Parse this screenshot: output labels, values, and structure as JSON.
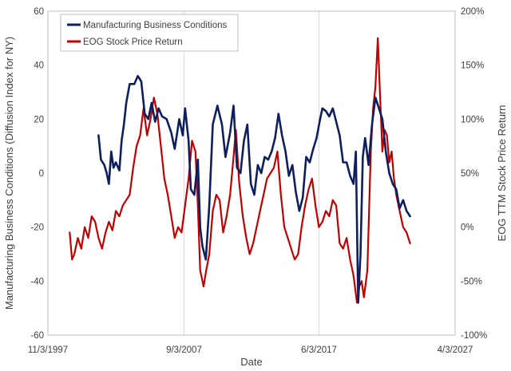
{
  "chart_data": {
    "type": "line",
    "xlabel": "Date",
    "ylabel_left": "Manufacturing Business Conditions (Diffusion Index for NY)",
    "ylabel_right": "EOG TTM Stock Price Return",
    "x_range": [
      "1997-11-03",
      "2027-04-03"
    ],
    "x_ticks": [
      "11/3/1997",
      "9/3/2007",
      "6/3/2017",
      "4/3/2027"
    ],
    "y_left_range": [
      -60,
      60
    ],
    "y_left_ticks": [
      "-60",
      "-40",
      "-20",
      "0",
      "20",
      "40",
      "60"
    ],
    "y_right_range": [
      -100,
      200
    ],
    "y_right_ticks": [
      "-100%",
      "-50%",
      "0%",
      "50%",
      "100%",
      "150%",
      "200%"
    ],
    "grid": "vertical-major",
    "legend_position": "top-left",
    "series": [
      {
        "name": "Manufacturing Business Conditions",
        "axis": "left",
        "color": "#0d1f5c",
        "points": [
          [
            "2001-07-01",
            14
          ],
          [
            "2001-09-01",
            5
          ],
          [
            "2001-12-01",
            3
          ],
          [
            "2002-02-01",
            0
          ],
          [
            "2002-04-01",
            -4
          ],
          [
            "2002-06-01",
            8
          ],
          [
            "2002-08-01",
            2
          ],
          [
            "2002-10-01",
            4
          ],
          [
            "2003-01-01",
            1
          ],
          [
            "2003-03-01",
            12
          ],
          [
            "2003-05-01",
            18
          ],
          [
            "2003-07-01",
            26
          ],
          [
            "2003-10-01",
            33
          ],
          [
            "2004-02-01",
            33
          ],
          [
            "2004-05-01",
            36
          ],
          [
            "2004-08-01",
            34
          ],
          [
            "2004-11-01",
            22
          ],
          [
            "2005-02-01",
            20
          ],
          [
            "2005-05-01",
            26
          ],
          [
            "2005-08-01",
            19
          ],
          [
            "2005-11-01",
            24
          ],
          [
            "2006-02-01",
            21
          ],
          [
            "2006-06-01",
            20
          ],
          [
            "2006-10-01",
            15
          ],
          [
            "2007-01-01",
            9
          ],
          [
            "2007-05-01",
            20
          ],
          [
            "2007-08-01",
            14
          ],
          [
            "2007-10-01",
            24
          ],
          [
            "2008-01-01",
            12
          ],
          [
            "2008-03-01",
            -6
          ],
          [
            "2008-06-01",
            -8
          ],
          [
            "2008-09-01",
            5
          ],
          [
            "2008-11-01",
            -20
          ],
          [
            "2009-01-01",
            -27
          ],
          [
            "2009-04-01",
            -32
          ],
          [
            "2009-07-01",
            -12
          ],
          [
            "2009-10-01",
            18
          ],
          [
            "2010-02-01",
            25
          ],
          [
            "2010-06-01",
            18
          ],
          [
            "2010-09-01",
            6
          ],
          [
            "2011-01-01",
            15
          ],
          [
            "2011-04-01",
            25
          ],
          [
            "2011-07-01",
            2
          ],
          [
            "2011-10-01",
            0
          ],
          [
            "2012-01-01",
            12
          ],
          [
            "2012-04-01",
            18
          ],
          [
            "2012-07-01",
            -4
          ],
          [
            "2012-10-01",
            -8
          ],
          [
            "2013-01-01",
            3
          ],
          [
            "2013-04-01",
            0
          ],
          [
            "2013-07-01",
            6
          ],
          [
            "2013-10-01",
            5
          ],
          [
            "2014-01-01",
            8
          ],
          [
            "2014-04-01",
            13
          ],
          [
            "2014-07-01",
            22
          ],
          [
            "2014-10-01",
            14
          ],
          [
            "2015-01-01",
            8
          ],
          [
            "2015-04-01",
            -1
          ],
          [
            "2015-07-01",
            3
          ],
          [
            "2015-10-01",
            -7
          ],
          [
            "2016-01-01",
            -14
          ],
          [
            "2016-04-01",
            -9
          ],
          [
            "2016-07-01",
            6
          ],
          [
            "2016-10-01",
            4
          ],
          [
            "2017-01-01",
            9
          ],
          [
            "2017-04-01",
            13
          ],
          [
            "2017-07-01",
            20
          ],
          [
            "2017-09-01",
            24
          ],
          [
            "2017-12-01",
            23
          ],
          [
            "2018-03-01",
            21
          ],
          [
            "2018-06-01",
            24
          ],
          [
            "2018-09-01",
            19
          ],
          [
            "2018-12-01",
            14
          ],
          [
            "2019-03-01",
            4
          ],
          [
            "2019-06-01",
            4
          ],
          [
            "2019-09-01",
            -1
          ],
          [
            "2019-12-01",
            -4
          ],
          [
            "2020-02-01",
            8
          ],
          [
            "2020-04-01",
            -48
          ],
          [
            "2020-06-01",
            -30
          ],
          [
            "2020-08-01",
            6
          ],
          [
            "2020-10-01",
            13
          ],
          [
            "2021-01-01",
            3
          ],
          [
            "2021-04-01",
            18
          ],
          [
            "2021-07-01",
            28
          ],
          [
            "2021-10-01",
            24
          ],
          [
            "2022-01-01",
            20
          ],
          [
            "2022-04-01",
            8
          ],
          [
            "2022-07-01",
            0
          ],
          [
            "2022-10-01",
            -4
          ],
          [
            "2023-01-01",
            -6
          ],
          [
            "2023-04-01",
            -13
          ],
          [
            "2023-07-01",
            -10
          ],
          [
            "2023-10-01",
            -14
          ],
          [
            "2024-01-01",
            -16
          ]
        ]
      },
      {
        "name": "EOG Stock Price Return",
        "axis": "right",
        "color": "#c00000",
        "points": [
          [
            "1999-06-01",
            -5
          ],
          [
            "1999-08-01",
            -30
          ],
          [
            "1999-10-01",
            -25
          ],
          [
            "2000-01-01",
            -10
          ],
          [
            "2000-04-01",
            -20
          ],
          [
            "2000-07-01",
            0
          ],
          [
            "2000-10-01",
            -10
          ],
          [
            "2001-01-01",
            10
          ],
          [
            "2001-04-01",
            5
          ],
          [
            "2001-07-01",
            -10
          ],
          [
            "2001-10-01",
            -20
          ],
          [
            "2002-01-01",
            -5
          ],
          [
            "2002-04-01",
            5
          ],
          [
            "2002-07-01",
            -3
          ],
          [
            "2002-10-01",
            15
          ],
          [
            "2003-01-01",
            10
          ],
          [
            "2003-04-01",
            20
          ],
          [
            "2003-07-01",
            25
          ],
          [
            "2003-10-01",
            30
          ],
          [
            "2004-01-01",
            55
          ],
          [
            "2004-04-01",
            75
          ],
          [
            "2004-07-01",
            85
          ],
          [
            "2004-10-01",
            110
          ],
          [
            "2005-01-01",
            85
          ],
          [
            "2005-04-01",
            100
          ],
          [
            "2005-07-01",
            120
          ],
          [
            "2005-10-01",
            105
          ],
          [
            "2006-01-01",
            75
          ],
          [
            "2006-04-01",
            45
          ],
          [
            "2006-07-01",
            30
          ],
          [
            "2006-10-01",
            10
          ],
          [
            "2007-01-01",
            -10
          ],
          [
            "2007-04-01",
            0
          ],
          [
            "2007-07-01",
            -5
          ],
          [
            "2007-10-01",
            20
          ],
          [
            "2008-01-01",
            45
          ],
          [
            "2008-04-01",
            80
          ],
          [
            "2008-07-01",
            70
          ],
          [
            "2008-09-01",
            20
          ],
          [
            "2008-11-01",
            -40
          ],
          [
            "2009-02-01",
            -55
          ],
          [
            "2009-04-01",
            -42
          ],
          [
            "2009-07-01",
            -25
          ],
          [
            "2009-10-01",
            15
          ],
          [
            "2010-01-01",
            30
          ],
          [
            "2010-04-01",
            25
          ],
          [
            "2010-07-01",
            -5
          ],
          [
            "2010-10-01",
            10
          ],
          [
            "2011-01-01",
            30
          ],
          [
            "2011-04-01",
            65
          ],
          [
            "2011-06-01",
            90
          ],
          [
            "2011-09-01",
            40
          ],
          [
            "2011-12-01",
            10
          ],
          [
            "2012-03-01",
            -10
          ],
          [
            "2012-06-01",
            -25
          ],
          [
            "2012-09-01",
            -15
          ],
          [
            "2012-12-01",
            0
          ],
          [
            "2013-03-01",
            15
          ],
          [
            "2013-06-01",
            30
          ],
          [
            "2013-09-01",
            45
          ],
          [
            "2013-12-01",
            50
          ],
          [
            "2014-03-01",
            55
          ],
          [
            "2014-06-01",
            70
          ],
          [
            "2014-09-01",
            30
          ],
          [
            "2014-12-01",
            0
          ],
          [
            "2015-03-01",
            -10
          ],
          [
            "2015-06-01",
            -20
          ],
          [
            "2015-09-01",
            -30
          ],
          [
            "2015-12-01",
            -25
          ],
          [
            "2016-03-01",
            0
          ],
          [
            "2016-06-01",
            20
          ],
          [
            "2016-09-01",
            35
          ],
          [
            "2016-12-01",
            45
          ],
          [
            "2017-03-01",
            20
          ],
          [
            "2017-06-01",
            0
          ],
          [
            "2017-09-01",
            5
          ],
          [
            "2017-12-01",
            15
          ],
          [
            "2018-03-01",
            10
          ],
          [
            "2018-06-01",
            25
          ],
          [
            "2018-09-01",
            20
          ],
          [
            "2018-12-01",
            -15
          ],
          [
            "2019-03-01",
            -20
          ],
          [
            "2019-06-01",
            -10
          ],
          [
            "2019-09-01",
            -30
          ],
          [
            "2019-12-01",
            -45
          ],
          [
            "2020-03-01",
            -70
          ],
          [
            "2020-05-01",
            -55
          ],
          [
            "2020-07-01",
            -50
          ],
          [
            "2020-09-01",
            -65
          ],
          [
            "2020-12-01",
            -40
          ],
          [
            "2021-03-01",
            70
          ],
          [
            "2021-05-01",
            110
          ],
          [
            "2021-07-01",
            130
          ],
          [
            "2021-09-01",
            175
          ],
          [
            "2021-11-01",
            120
          ],
          [
            "2022-01-01",
            70
          ],
          [
            "2022-03-01",
            90
          ],
          [
            "2022-05-01",
            85
          ],
          [
            "2022-07-01",
            60
          ],
          [
            "2022-09-01",
            70
          ],
          [
            "2022-11-01",
            45
          ],
          [
            "2023-01-01",
            30
          ],
          [
            "2023-04-01",
            15
          ],
          [
            "2023-07-01",
            0
          ],
          [
            "2023-10-01",
            -5
          ],
          [
            "2024-01-01",
            -15
          ]
        ]
      }
    ]
  }
}
